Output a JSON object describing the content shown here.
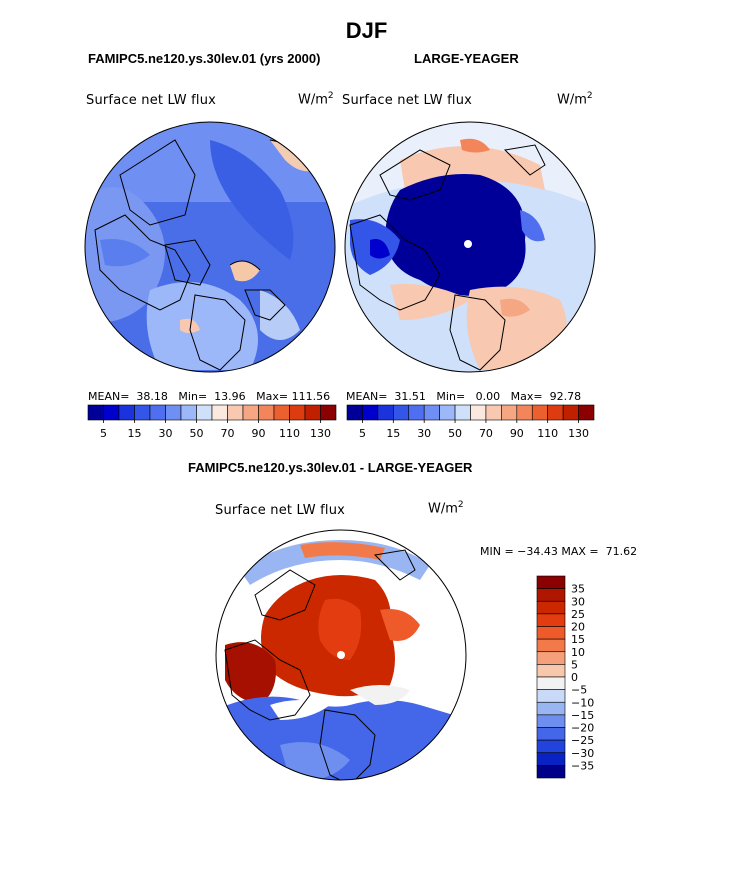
{
  "title": "DJF",
  "panels": [
    {
      "subtitle": "FAMIPC5.ne120.ys.30lev.01 (yrs 2000)",
      "variable": "Surface net LW flux",
      "units": "W/m",
      "units_exp": "2",
      "stats": {
        "mean_label": "MEAN=",
        "mean": "38.18",
        "min_label": "Min=",
        "min": "13.96",
        "max_label": "Max=",
        "max": "111.56"
      }
    },
    {
      "subtitle": "LARGE-YEAGER",
      "variable": "Surface net LW flux",
      "units": "W/m",
      "units_exp": "2",
      "stats": {
        "mean_label": "MEAN=",
        "mean": "31.51",
        "min_label": "Min=",
        "min": "0.00",
        "max_label": "Max=",
        "max": "92.78"
      }
    },
    {
      "subtitle": "FAMIPC5.ne120.ys.30lev.01 - LARGE-YEAGER",
      "variable": "Surface net LW flux",
      "units": "W/m",
      "units_exp": "2",
      "stats_text": "MIN = −34.43 MAX =  71.62"
    }
  ],
  "chart_data": [
    {
      "type": "heatmap",
      "title": "Surface net LW flux",
      "projection": "polar stereographic (north pole)",
      "colorbar": {
        "orientation": "horizontal",
        "tick_labels": [
          "5",
          "15",
          "30",
          "50",
          "70",
          "90",
          "110",
          "130"
        ],
        "colors": [
          "#000099",
          "#0000cc",
          "#1a33dd",
          "#3355e8",
          "#4f6ff0",
          "#6f8ff5",
          "#9db8f8",
          "#cfe0fb",
          "#fbe8de",
          "#f8c8b0",
          "#f5a682",
          "#f2865a",
          "#ec6030",
          "#dd3c10",
          "#c02000",
          "#8b0000"
        ]
      },
      "dominant_range": "15-50 W/m2 over the Arctic region"
    },
    {
      "type": "heatmap",
      "title": "Surface net LW flux",
      "projection": "polar stereographic (north pole)",
      "colorbar": {
        "orientation": "horizontal",
        "tick_labels": [
          "5",
          "15",
          "30",
          "50",
          "70",
          "90",
          "110",
          "130"
        ],
        "colors": [
          "#000099",
          "#0000cc",
          "#1a33dd",
          "#3355e8",
          "#4f6ff0",
          "#6f8ff5",
          "#9db8f8",
          "#cfe0fb",
          "#fbe8de",
          "#f8c8b0",
          "#f5a682",
          "#f2865a",
          "#ec6030",
          "#dd3c10",
          "#c02000",
          "#8b0000"
        ]
      },
      "dominant_range": "0-5 W/m2 over the central Arctic"
    },
    {
      "type": "heatmap",
      "title": "Surface net LW flux",
      "projection": "polar stereographic (north pole)",
      "colorbar": {
        "orientation": "vertical",
        "tick_labels": [
          "35",
          "30",
          "25",
          "20",
          "15",
          "10",
          "5",
          "0",
          "−5",
          "−10",
          "−15",
          "−20",
          "−25",
          "−30",
          "−35"
        ],
        "colors": [
          "#8b0000",
          "#b01500",
          "#cc2800",
          "#e23c10",
          "#ee5a2a",
          "#f27a4a",
          "#f5a07a",
          "#f8c8ad",
          "#f2f2f2",
          "#c9d9f8",
          "#9ab6f2",
          "#6f8ff0",
          "#4466e8",
          "#2244dd",
          "#0a22c4",
          "#000088"
        ]
      },
      "dominant_range": "25-35 W/m2 positive difference over the central Arctic"
    }
  ]
}
